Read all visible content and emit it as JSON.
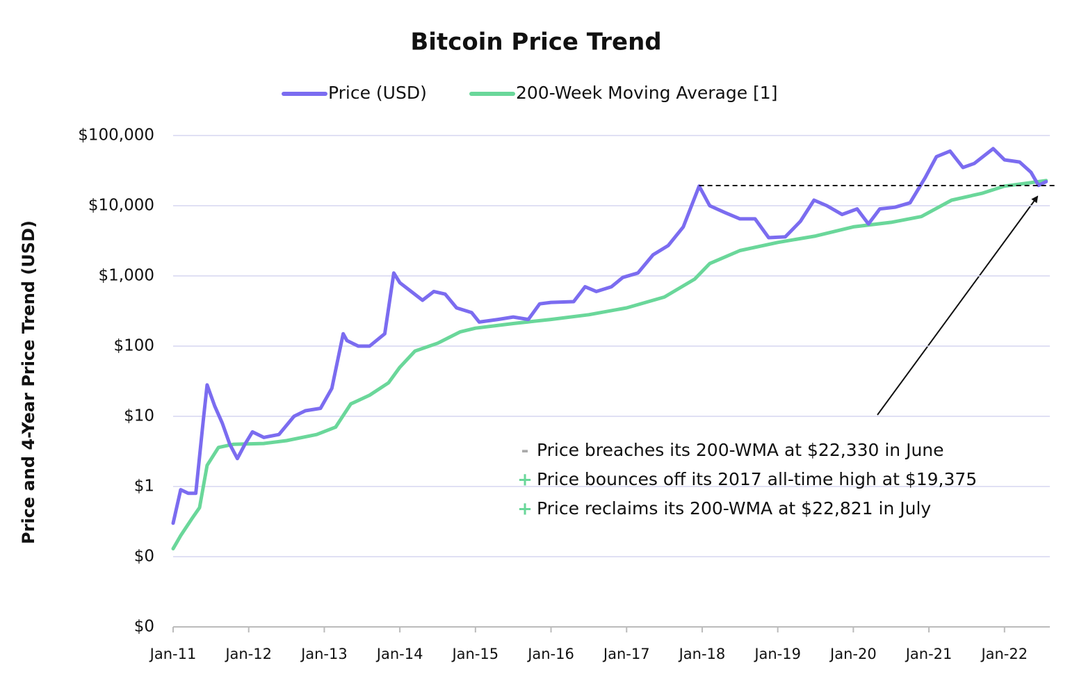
{
  "chart_data": {
    "type": "line",
    "title": "Bitcoin Price Trend",
    "y_label": "Price and 4-Year Price Trend (USD)",
    "log_scale": true,
    "grid": true,
    "legend": "top",
    "xlim": [
      2011,
      2022.6
    ],
    "xticks": [
      {
        "value": 2011,
        "label": "Jan-11"
      },
      {
        "value": 2012,
        "label": "Jan-12"
      },
      {
        "value": 2013,
        "label": "Jan-13"
      },
      {
        "value": 2014,
        "label": "Jan-14"
      },
      {
        "value": 2015,
        "label": "Jan-15"
      },
      {
        "value": 2016,
        "label": "Jan-16"
      },
      {
        "value": 2017,
        "label": "Jan-17"
      },
      {
        "value": 2018,
        "label": "Jan-18"
      },
      {
        "value": 2019,
        "label": "Jan-19"
      },
      {
        "value": 2020,
        "label": "Jan-20"
      },
      {
        "value": 2021,
        "label": "Jan-21"
      },
      {
        "value": 2022,
        "label": "Jan-22"
      }
    ],
    "ylim": [
      0.01,
      100000
    ],
    "yticks": [
      {
        "value": 0.01,
        "label": "$0"
      },
      {
        "value": 0.1,
        "label": "$0"
      },
      {
        "value": 1,
        "label": "$1"
      },
      {
        "value": 10,
        "label": "$10"
      },
      {
        "value": 100,
        "label": "$100"
      },
      {
        "value": 1000,
        "label": "$1,000"
      },
      {
        "value": 10000,
        "label": "$10,000"
      },
      {
        "value": 100000,
        "label": "$100,000"
      }
    ],
    "series": [
      {
        "name": "Price (USD)",
        "color": "#7b6cf0",
        "x": [
          2011.0,
          2011.1,
          2011.2,
          2011.3,
          2011.4,
          2011.45,
          2011.55,
          2011.65,
          2011.75,
          2011.85,
          2011.95,
          2012.05,
          2012.2,
          2012.4,
          2012.6,
          2012.75,
          2012.95,
          2013.1,
          2013.25,
          2013.3,
          2013.45,
          2013.6,
          2013.8,
          2013.92,
          2014.0,
          2014.15,
          2014.3,
          2014.45,
          2014.6,
          2014.75,
          2014.95,
          2015.05,
          2015.3,
          2015.5,
          2015.7,
          2015.85,
          2016.0,
          2016.3,
          2016.45,
          2016.6,
          2016.8,
          2016.95,
          2017.15,
          2017.35,
          2017.55,
          2017.75,
          2017.96,
          2018.1,
          2018.3,
          2018.5,
          2018.7,
          2018.88,
          2019.1,
          2019.3,
          2019.48,
          2019.65,
          2019.85,
          2020.05,
          2020.2,
          2020.35,
          2020.55,
          2020.75,
          2020.95,
          2021.1,
          2021.28,
          2021.45,
          2021.6,
          2021.85,
          2022.0,
          2022.2,
          2022.35,
          2022.45,
          2022.55
        ],
        "values": [
          0.3,
          0.9,
          0.8,
          0.8,
          9,
          28,
          14,
          8,
          4,
          2.5,
          4,
          6,
          5,
          5.5,
          10,
          12,
          13,
          25,
          150,
          120,
          100,
          100,
          150,
          1100,
          800,
          600,
          450,
          600,
          550,
          350,
          300,
          220,
          240,
          260,
          240,
          400,
          420,
          430,
          700,
          600,
          700,
          950,
          1100,
          2000,
          2700,
          5000,
          19000,
          10000,
          8000,
          6500,
          6500,
          3500,
          3600,
          6000,
          12000,
          10000,
          7500,
          9000,
          5500,
          9000,
          9500,
          11000,
          25000,
          50000,
          60000,
          35000,
          40000,
          65000,
          45000,
          42000,
          30000,
          19500,
          22000
        ]
      },
      {
        "name": "200-Week Moving Average [1]",
        "color": "#6ad79a",
        "x": [
          2011.0,
          2011.1,
          2011.25,
          2011.35,
          2011.45,
          2011.6,
          2011.8,
          2012.2,
          2012.5,
          2012.9,
          2013.15,
          2013.35,
          2013.6,
          2013.85,
          2014.0,
          2014.2,
          2014.5,
          2014.8,
          2015.0,
          2015.5,
          2016.0,
          2016.5,
          2017.0,
          2017.5,
          2017.9,
          2018.1,
          2018.5,
          2019.0,
          2019.5,
          2020.0,
          2020.5,
          2020.9,
          2021.3,
          2021.7,
          2022.0,
          2022.3,
          2022.55
        ],
        "values": [
          0.13,
          0.2,
          0.35,
          0.5,
          2,
          3.6,
          4,
          4.1,
          4.5,
          5.5,
          7,
          15,
          20,
          30,
          50,
          85,
          110,
          160,
          180,
          210,
          240,
          280,
          350,
          500,
          900,
          1500,
          2300,
          3000,
          3700,
          5000,
          5800,
          7000,
          12000,
          15000,
          19000,
          21000,
          22800
        ]
      }
    ],
    "reference_line": {
      "value": 19375,
      "x_start": 2017.96
    },
    "annotations": [
      {
        "symbol": "-",
        "color": "#aaaaaa",
        "text": "Price breaches its 200-WMA at $22,330 in June"
      },
      {
        "symbol": "+",
        "color": "#6ad79a",
        "text": "Price bounces off its 2017 all-time high at $19,375"
      },
      {
        "symbol": "+",
        "color": "#6ad79a",
        "text": "Price reclaims its 200-WMA at $22,821 in July"
      }
    ]
  }
}
